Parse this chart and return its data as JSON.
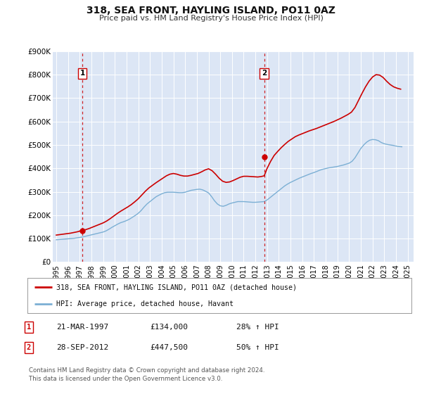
{
  "title": "318, SEA FRONT, HAYLING ISLAND, PO11 0AZ",
  "subtitle": "Price paid vs. HM Land Registry's House Price Index (HPI)",
  "bg_color": "#dce6f5",
  "fig_bg_color": "#ffffff",
  "red_line_color": "#cc0000",
  "blue_line_color": "#7bafd4",
  "marker_color": "#cc0000",
  "dashed_color": "#cc0000",
  "ylim": [
    0,
    900000
  ],
  "yticks": [
    0,
    100000,
    200000,
    300000,
    400000,
    500000,
    600000,
    700000,
    800000,
    900000
  ],
  "ytick_labels": [
    "£0",
    "£100K",
    "£200K",
    "£300K",
    "£400K",
    "£500K",
    "£600K",
    "£700K",
    "£800K",
    "£900K"
  ],
  "xlim_start": 1994.7,
  "xlim_end": 2025.5,
  "point1_x": 1997.22,
  "point1_y": 134000,
  "point2_x": 2012.75,
  "point2_y": 447500,
  "legend_label_red": "318, SEA FRONT, HAYLING ISLAND, PO11 0AZ (detached house)",
  "legend_label_blue": "HPI: Average price, detached house, Havant",
  "table_row1": [
    "1",
    "21-MAR-1997",
    "£134,000",
    "28% ↑ HPI"
  ],
  "table_row2": [
    "2",
    "28-SEP-2012",
    "£447,500",
    "50% ↑ HPI"
  ],
  "footer1": "Contains HM Land Registry data © Crown copyright and database right 2024.",
  "footer2": "This data is licensed under the Open Government Licence v3.0.",
  "hpi_data_x": [
    1995.0,
    1995.25,
    1995.5,
    1995.75,
    1996.0,
    1996.25,
    1996.5,
    1996.75,
    1997.0,
    1997.25,
    1997.5,
    1997.75,
    1998.0,
    1998.25,
    1998.5,
    1998.75,
    1999.0,
    1999.25,
    1999.5,
    1999.75,
    2000.0,
    2000.25,
    2000.5,
    2000.75,
    2001.0,
    2001.25,
    2001.5,
    2001.75,
    2002.0,
    2002.25,
    2002.5,
    2002.75,
    2003.0,
    2003.25,
    2003.5,
    2003.75,
    2004.0,
    2004.25,
    2004.5,
    2004.75,
    2005.0,
    2005.25,
    2005.5,
    2005.75,
    2006.0,
    2006.25,
    2006.5,
    2006.75,
    2007.0,
    2007.25,
    2007.5,
    2007.75,
    2008.0,
    2008.25,
    2008.5,
    2008.75,
    2009.0,
    2009.25,
    2009.5,
    2009.75,
    2010.0,
    2010.25,
    2010.5,
    2010.75,
    2011.0,
    2011.25,
    2011.5,
    2011.75,
    2012.0,
    2012.25,
    2012.5,
    2012.75,
    2013.0,
    2013.25,
    2013.5,
    2013.75,
    2014.0,
    2014.25,
    2014.5,
    2014.75,
    2015.0,
    2015.25,
    2015.5,
    2015.75,
    2016.0,
    2016.25,
    2016.5,
    2016.75,
    2017.0,
    2017.25,
    2017.5,
    2017.75,
    2018.0,
    2018.25,
    2018.5,
    2018.75,
    2019.0,
    2019.25,
    2019.5,
    2019.75,
    2020.0,
    2020.25,
    2020.5,
    2020.75,
    2021.0,
    2021.25,
    2021.5,
    2021.75,
    2022.0,
    2022.25,
    2022.5,
    2022.75,
    2023.0,
    2023.25,
    2023.5,
    2023.75,
    2024.0,
    2024.25,
    2024.5
  ],
  "hpi_data_y": [
    95000,
    96000,
    97000,
    98000,
    99000,
    100000,
    101000,
    103000,
    105000,
    107000,
    110000,
    113000,
    116000,
    119000,
    122000,
    125000,
    128000,
    133000,
    140000,
    148000,
    155000,
    162000,
    168000,
    172000,
    177000,
    183000,
    191000,
    199000,
    208000,
    220000,
    235000,
    248000,
    258000,
    268000,
    278000,
    285000,
    291000,
    296000,
    298000,
    298000,
    298000,
    297000,
    296000,
    296000,
    298000,
    302000,
    306000,
    308000,
    310000,
    311000,
    308000,
    302000,
    295000,
    280000,
    262000,
    248000,
    240000,
    238000,
    242000,
    248000,
    252000,
    255000,
    258000,
    258000,
    258000,
    257000,
    256000,
    255000,
    255000,
    256000,
    257000,
    258000,
    265000,
    275000,
    285000,
    295000,
    305000,
    315000,
    325000,
    333000,
    340000,
    346000,
    352000,
    358000,
    363000,
    368000,
    373000,
    378000,
    382000,
    387000,
    392000,
    396000,
    399000,
    402000,
    404000,
    406000,
    408000,
    411000,
    414000,
    418000,
    422000,
    430000,
    445000,
    465000,
    485000,
    500000,
    512000,
    520000,
    523000,
    522000,
    518000,
    510000,
    505000,
    502000,
    500000,
    498000,
    495000,
    493000,
    492000
  ],
  "price_data_x": [
    1995.0,
    1995.3,
    1995.6,
    1995.9,
    1996.2,
    1996.5,
    1996.8,
    1997.0,
    1997.22,
    1997.5,
    1997.8,
    1998.1,
    1998.4,
    1998.7,
    1999.0,
    1999.3,
    1999.6,
    1999.9,
    2000.2,
    2000.5,
    2000.8,
    2001.1,
    2001.4,
    2001.7,
    2002.0,
    2002.3,
    2002.6,
    2002.9,
    2003.2,
    2003.5,
    2003.8,
    2004.1,
    2004.4,
    2004.7,
    2005.0,
    2005.3,
    2005.6,
    2005.9,
    2006.2,
    2006.5,
    2006.8,
    2007.1,
    2007.4,
    2007.7,
    2008.0,
    2008.3,
    2008.6,
    2008.9,
    2009.2,
    2009.5,
    2009.8,
    2010.1,
    2010.4,
    2010.7,
    2011.0,
    2011.3,
    2011.6,
    2011.9,
    2012.2,
    2012.5,
    2012.75,
    2013.0,
    2013.3,
    2013.6,
    2013.9,
    2014.2,
    2014.5,
    2014.8,
    2015.1,
    2015.4,
    2015.7,
    2016.0,
    2016.3,
    2016.6,
    2016.9,
    2017.2,
    2017.5,
    2017.8,
    2018.1,
    2018.4,
    2018.7,
    2019.0,
    2019.3,
    2019.6,
    2019.9,
    2020.2,
    2020.5,
    2020.8,
    2021.1,
    2021.4,
    2021.7,
    2022.0,
    2022.3,
    2022.6,
    2022.9,
    2023.2,
    2023.5,
    2023.8,
    2024.1,
    2024.4
  ],
  "price_data_y": [
    115000,
    117000,
    119000,
    121000,
    123000,
    126000,
    129000,
    132000,
    134000,
    138000,
    143000,
    149000,
    155000,
    161000,
    167000,
    175000,
    185000,
    196000,
    207000,
    217000,
    226000,
    235000,
    245000,
    257000,
    270000,
    286000,
    302000,
    316000,
    327000,
    338000,
    348000,
    358000,
    368000,
    375000,
    378000,
    375000,
    370000,
    367000,
    367000,
    370000,
    374000,
    378000,
    385000,
    393000,
    398000,
    390000,
    375000,
    358000,
    345000,
    340000,
    342000,
    348000,
    355000,
    362000,
    366000,
    366000,
    365000,
    364000,
    363000,
    365000,
    368000,
    400000,
    430000,
    455000,
    472000,
    488000,
    502000,
    515000,
    525000,
    535000,
    542000,
    548000,
    554000,
    560000,
    565000,
    570000,
    576000,
    582000,
    588000,
    594000,
    600000,
    607000,
    614000,
    622000,
    630000,
    640000,
    660000,
    690000,
    720000,
    748000,
    772000,
    790000,
    800000,
    798000,
    788000,
    772000,
    758000,
    748000,
    742000,
    738000
  ]
}
